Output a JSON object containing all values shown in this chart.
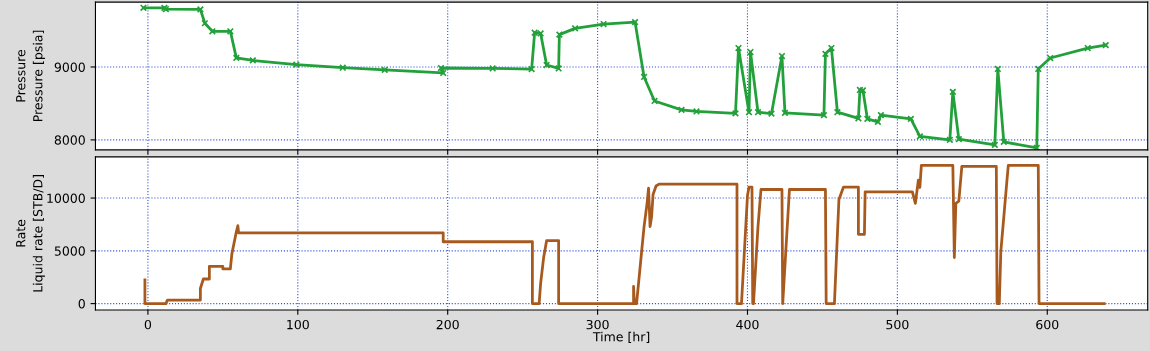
{
  "chart_data": [
    {
      "type": "line",
      "title": "Pressure",
      "ylabel": "Pressure [psia]",
      "xlim": [
        -35,
        667
      ],
      "xticks": [
        0,
        100,
        200,
        300,
        400,
        500,
        600
      ],
      "ylim": [
        7863,
        9890
      ],
      "yticks": [
        8000,
        9000
      ],
      "grid": true,
      "tick_labels": "y",
      "marker": "cross",
      "line_style": "solid",
      "series": [
        {
          "color": "#22a03a",
          "x": [
            -3,
            11,
            12,
            35,
            38,
            43,
            55,
            59,
            70,
            99,
            130,
            158,
            197,
            195.5,
            230,
            256,
            258,
            262,
            266,
            274,
            274.5,
            285,
            304,
            325,
            331,
            338,
            356,
            366,
            392,
            394,
            401,
            402,
            407,
            416,
            423,
            425,
            451,
            452,
            456,
            460,
            474,
            475,
            477,
            480,
            487,
            489,
            509,
            515,
            535,
            537,
            541,
            565,
            567,
            571,
            593,
            594,
            602,
            627,
            639
          ],
          "values": [
            9812,
            9810,
            9795,
            9790,
            9600,
            9490,
            9490,
            9125,
            9090,
            9033,
            8990,
            8960,
            8918,
            8986,
            8980,
            8972,
            9470,
            9460,
            9027,
            8980,
            9444,
            9530,
            9589,
            9616,
            8863,
            8534,
            8411,
            8390,
            8363,
            9260,
            8380,
            9205,
            8380,
            8360,
            9150,
            8370,
            8340,
            9180,
            9260,
            8380,
            8295,
            8685,
            8680,
            8288,
            8247,
            8340,
            8288,
            8048,
            8000,
            8658,
            8010,
            7932,
            8973,
            7973,
            7890,
            8973,
            9123,
            9260,
            9300
          ]
        }
      ]
    },
    {
      "type": "line",
      "title": "Rate",
      "xlabel": "Time [hr]",
      "ylabel": "Liquid rate [STB/D]",
      "xlim": [
        -35,
        667
      ],
      "xticks": [
        0,
        100,
        200,
        300,
        400,
        500,
        600
      ],
      "ylim": [
        -600,
        13900
      ],
      "yticks": [
        0,
        5000,
        10000
      ],
      "grid": true,
      "line_style": "solid",
      "series": [
        {
          "color": "#a85a1e",
          "x": [
            -2,
            -2,
            12,
            13,
            35,
            35,
            37,
            41,
            41,
            50,
            50,
            55,
            56,
            59,
            60,
            60.5,
            197,
            197,
            256.5,
            256.5,
            261,
            262,
            264,
            266,
            274,
            274,
            324,
            324,
            324.5,
            326,
            331,
            333,
            334,
            335,
            336,
            337,
            339,
            341,
            393,
            393,
            396,
            400,
            401,
            403,
            403.5,
            404,
            407,
            409,
            423,
            423.5,
            428,
            452,
            452.5,
            458,
            461,
            464,
            474,
            474,
            478,
            478.5,
            480,
            510,
            512,
            514,
            515,
            516,
            537,
            538,
            539,
            541,
            543,
            566,
            566.5,
            568,
            569,
            573,
            574,
            594,
            594.5,
            638
          ],
          "values": [
            2240,
            0,
            0,
            330,
            330,
            1430,
            2330,
            2330,
            3520,
            3520,
            3280,
            3280,
            4710,
            6800,
            7380,
            6710,
            6710,
            5860,
            5860,
            0,
            0,
            1920,
            4360,
            5970,
            5970,
            0,
            0,
            1620,
            0,
            0,
            7290,
            9480,
            10950,
            7290,
            8200,
            10330,
            11140,
            11320,
            11320,
            0,
            0,
            10240,
            11030,
            11030,
            0,
            0,
            7290,
            10810,
            10810,
            0,
            10810,
            10810,
            0,
            0,
            9860,
            11030,
            11030,
            6560,
            6560,
            10590,
            10590,
            10590,
            9500,
            11690,
            11000,
            13100,
            13100,
            4360,
            9500,
            9700,
            13000,
            13000,
            0,
            0,
            4900,
            11500,
            13100,
            13100,
            0,
            0
          ]
        }
      ]
    }
  ]
}
